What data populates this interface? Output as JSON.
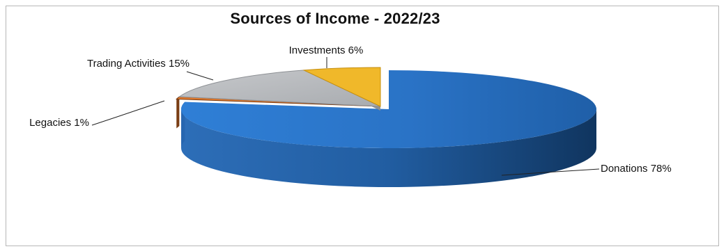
{
  "chart_data": {
    "type": "pie",
    "title": "Sources of Income - 2022/23",
    "slices": [
      {
        "label": "Donations",
        "value": 78,
        "display": "Donations 78%",
        "color": "#2c76c9"
      },
      {
        "label": "Legacies",
        "value": 1,
        "display": "Legacies 1%",
        "color": "#e07a2e"
      },
      {
        "label": "Trading Activities",
        "value": 15,
        "display": "Trading Activities 15%",
        "color": "#b9bcbf"
      },
      {
        "label": "Investments",
        "value": 6,
        "display": "Investments 6%",
        "color": "#f0b82a"
      }
    ],
    "three_d": true
  }
}
